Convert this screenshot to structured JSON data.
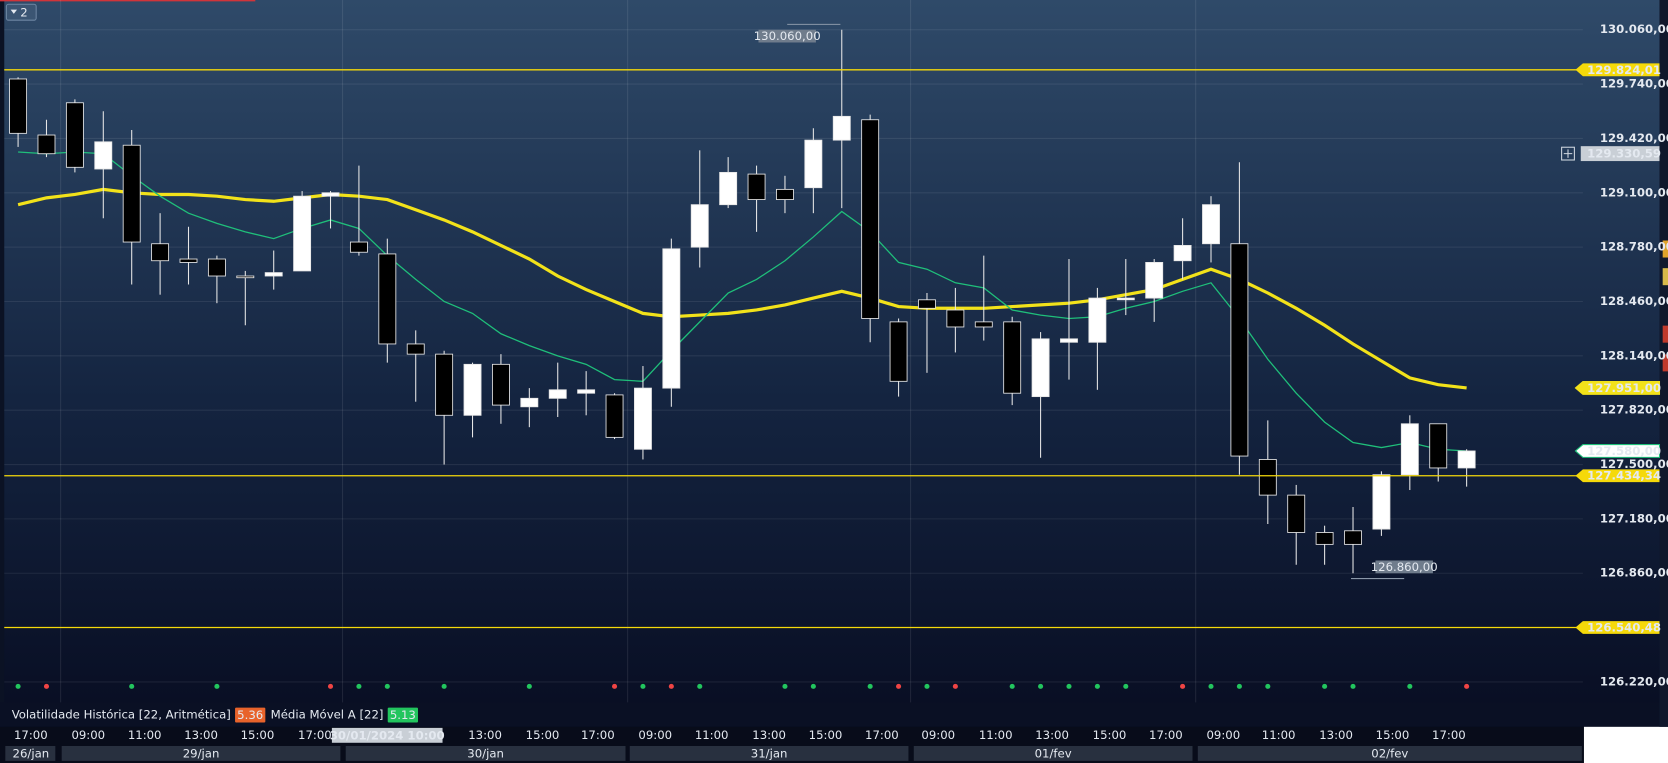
{
  "toolbar": {
    "badge": "2"
  },
  "chart_data": {
    "type": "candlestick",
    "open": [
      129770,
      129440,
      129630,
      129240,
      129380,
      128800,
      128710,
      128710,
      128610,
      128610,
      128640,
      129080,
      128810,
      128740,
      128210,
      128150,
      127790,
      128090,
      127840,
      127890,
      127920,
      127910,
      127590,
      127950,
      128780,
      129030,
      129210,
      129120,
      129130,
      129410,
      129530,
      128340,
      128470,
      128410,
      128340,
      128340,
      127900,
      128220,
      128220,
      128470,
      128480,
      128700,
      128800,
      128800,
      127530,
      127320,
      127100,
      127110,
      127120,
      127440,
      127740,
      127480
    ],
    "high": [
      129780,
      129530,
      129650,
      129580,
      129470,
      128980,
      128900,
      128730,
      128640,
      128760,
      129110,
      129110,
      129260,
      128830,
      128290,
      128170,
      128100,
      128150,
      127950,
      128100,
      128050,
      127920,
      128080,
      128830,
      129350,
      129310,
      129260,
      129200,
      129480,
      130060,
      129560,
      128360,
      128510,
      128540,
      128730,
      128370,
      128280,
      128710,
      128540,
      128710,
      128710,
      128950,
      129080,
      129280,
      127760,
      127380,
      127140,
      127250,
      127460,
      127790,
      127740,
      127590
    ],
    "low": [
      129370,
      129310,
      129220,
      128950,
      128560,
      128500,
      128560,
      128450,
      128320,
      128530,
      128640,
      128890,
      128730,
      128100,
      127870,
      127500,
      127660,
      127740,
      127720,
      127780,
      127790,
      127650,
      127530,
      127840,
      128660,
      129010,
      128870,
      128980,
      128980,
      129010,
      128220,
      127900,
      128040,
      128160,
      128230,
      127850,
      127540,
      128000,
      127940,
      128380,
      128340,
      128590,
      128690,
      127440,
      127150,
      126910,
      126910,
      126860,
      127080,
      127350,
      127400,
      127370
    ],
    "close": [
      129450,
      129330,
      129250,
      129400,
      128810,
      128700,
      128690,
      128610,
      128600,
      128630,
      129080,
      129100,
      128750,
      128210,
      128150,
      127790,
      128090,
      127850,
      127890,
      127940,
      127940,
      127660,
      127950,
      128770,
      129030,
      129220,
      129060,
      129060,
      129410,
      129550,
      128360,
      127990,
      128420,
      128310,
      128310,
      127920,
      128240,
      128240,
      128480,
      128480,
      128690,
      128790,
      129030,
      127550,
      127320,
      127100,
      127030,
      127030,
      127440,
      127740,
      127480,
      127580
    ],
    "up_color": "#ffffff",
    "down_color": "#000000",
    "overlays": [
      {
        "color": "#f2e21a",
        "last_label": "127.951,00",
        "values": [
          129030,
          129070,
          129090,
          129120,
          129100,
          129090,
          129090,
          129080,
          129060,
          129050,
          129070,
          129090,
          129080,
          129060,
          129000,
          128940,
          128870,
          128790,
          128710,
          128610,
          128530,
          128460,
          128390,
          128370,
          128380,
          128390,
          128410,
          128440,
          128480,
          128520,
          128480,
          128430,
          128420,
          128420,
          128420,
          128430,
          128440,
          128450,
          128470,
          128500,
          128530,
          128590,
          128650,
          128590,
          128510,
          128420,
          128320,
          128210,
          128110,
          128010,
          127970,
          127951
        ]
      },
      {
        "color": "#1fbf7a",
        "last_label": "127.580,00",
        "values": [
          129340,
          129330,
          129340,
          129330,
          129200,
          129080,
          128980,
          128920,
          128870,
          128830,
          128890,
          128940,
          128890,
          128730,
          128590,
          128460,
          128390,
          128270,
          128200,
          128140,
          128090,
          128000,
          127990,
          128170,
          128340,
          128510,
          128590,
          128700,
          128840,
          128990,
          128870,
          128690,
          128650,
          128570,
          128540,
          128410,
          128380,
          128360,
          128370,
          128420,
          128460,
          128520,
          128570,
          128360,
          128120,
          127920,
          127750,
          127630,
          127600,
          127630,
          127590,
          127580
        ]
      }
    ],
    "levels": [
      {
        "value": 129824.01,
        "label": "129.824,01"
      },
      {
        "value": 127434.34,
        "label": "127.434,34"
      },
      {
        "value": 126540.48,
        "label": "126.540,48"
      }
    ],
    "level_color": "#f5d90a",
    "crosshair": {
      "value": 129330.59,
      "label": "129.330,59",
      "time": "30/01/2024 10:00"
    },
    "annotations": [
      {
        "value": 130060,
        "label": "130.060,00"
      },
      {
        "value": 126860,
        "label": "126.860,00"
      }
    ],
    "ylim": [
      126100,
      130235
    ],
    "yticks": [
      {
        "value": 130060,
        "label": "130.060,00"
      },
      {
        "value": 129740,
        "label": "129.740,00"
      },
      {
        "value": 129420,
        "label": "129.420,00"
      },
      {
        "value": 129100,
        "label": "129.100,00"
      },
      {
        "value": 128780,
        "label": "128.780,00"
      },
      {
        "value": 128460,
        "label": "128.460,00"
      },
      {
        "value": 128140,
        "label": "128.140,00"
      },
      {
        "value": 127820,
        "label": "127.820,00"
      },
      {
        "value": 127500,
        "label": "127.500,00"
      },
      {
        "value": 127180,
        "label": "127.180,00"
      },
      {
        "value": 126860,
        "label": "126.860,00"
      },
      {
        "value": 126220,
        "label": "126.220,00"
      }
    ],
    "grid": true,
    "signals": [
      "#22c55e",
      "#ef4444",
      null,
      null,
      "#22c55e",
      null,
      null,
      "#22c55e",
      null,
      null,
      null,
      "#ef4444",
      "#22c55e",
      "#22c55e",
      null,
      "#22c55e",
      null,
      null,
      "#22c55e",
      null,
      null,
      "#ef4444",
      "#22c55e",
      "#ef4444",
      "#22c55e",
      null,
      null,
      "#22c55e",
      "#22c55e",
      null,
      "#22c55e",
      "#ef4444",
      "#22c55e",
      "#ef4444",
      null,
      "#22c55e",
      "#22c55e",
      "#22c55e",
      "#22c55e",
      "#22c55e",
      null,
      "#ef4444",
      "#22c55e",
      "#22c55e",
      "#22c55e",
      null,
      "#22c55e",
      "#22c55e",
      null,
      "#22c55e",
      null,
      "#ef4444"
    ],
    "indicators": [
      {
        "name": "Volatilidade Histórica [22, Aritmética]",
        "value": 5.36,
        "color": "#e8632b"
      },
      {
        "name": "Média Móvel A [22]",
        "value": 5.13,
        "color": "#22c55e"
      }
    ],
    "time_axis": [
      "17:00",
      "09:00",
      "11:00",
      "13:00",
      "15:00",
      "17:00",
      "13:00",
      "15:00",
      "17:00",
      "09:00",
      "11:00",
      "13:00",
      "15:00",
      "17:00",
      "09:00",
      "11:00",
      "13:00",
      "15:00",
      "17:00",
      "09:00",
      "11:00",
      "13:00",
      "15:00",
      "17:00"
    ],
    "days": [
      "26/jan",
      "29/jan",
      "30/jan",
      "31/jan",
      "01/fev",
      "02/fev"
    ]
  }
}
